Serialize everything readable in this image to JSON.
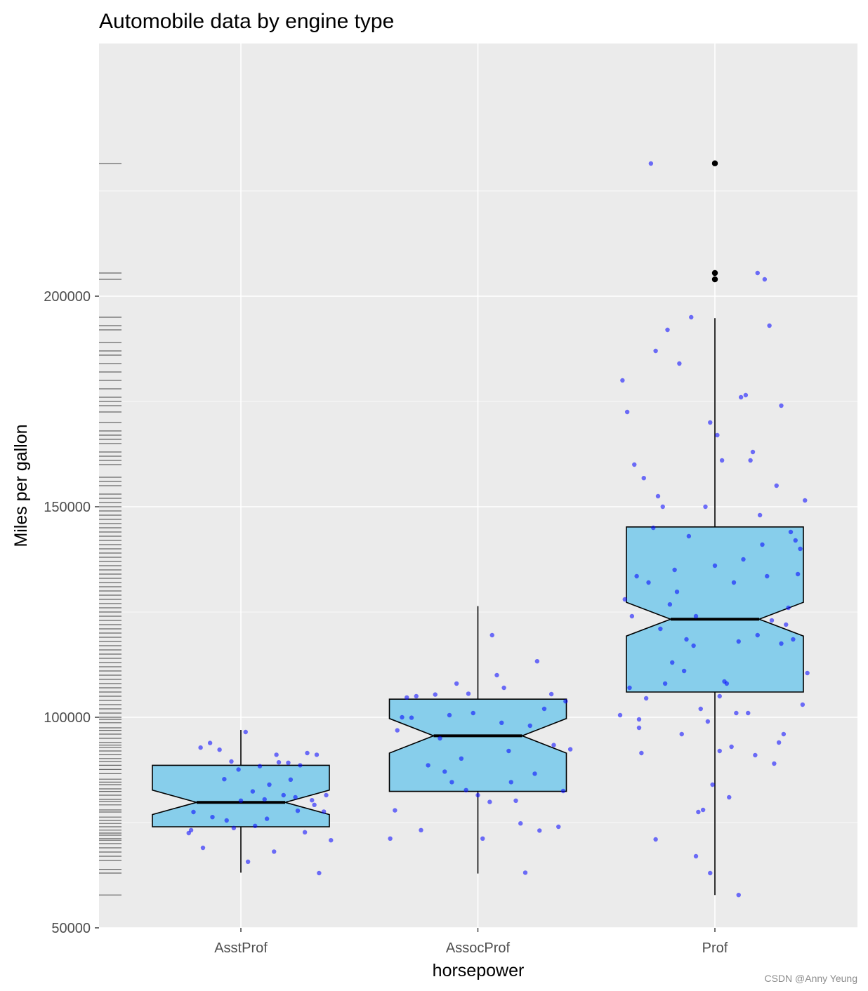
{
  "watermark": "CSDN @Anny Yeung",
  "colors": {
    "panel_bg": "#EBEBEB",
    "grid": "#FFFFFF",
    "box_fill": "#87CEEB",
    "box_outline": "#000000",
    "jitter_points": "#0000FF",
    "outliers": "#000000",
    "rug": "#666666"
  },
  "chart_data": {
    "type": "boxplot",
    "title": "Automobile data by engine type",
    "xlabel": "horsepower",
    "ylabel": "Miles per gallon",
    "categories": [
      "AsstProf",
      "AssocProf",
      "Prof"
    ],
    "ylim": [
      50000,
      250000
    ],
    "yticks": [
      50000,
      100000,
      150000,
      200000
    ],
    "ytick_labels": [
      "50000",
      "100000",
      "150000",
      "200000"
    ],
    "notched": true,
    "grid": true,
    "legend": "none",
    "boxes": [
      {
        "category": "AsstProf",
        "whisker_low": 63100,
        "q1": 74000,
        "median": 79800,
        "q3": 88600,
        "whisker_high": 97000,
        "notch_low": 76900,
        "notch_high": 82700,
        "outliers": []
      },
      {
        "category": "AssocProf",
        "whisker_low": 62900,
        "q1": 82400,
        "median": 95600,
        "q3": 104300,
        "whisker_high": 126400,
        "notch_low": 91500,
        "notch_high": 99700,
        "outliers": []
      },
      {
        "category": "Prof",
        "whisker_low": 57800,
        "q1": 106000,
        "median": 123300,
        "q3": 145200,
        "whisker_high": 194800,
        "notch_low": 119300,
        "notch_high": 127300,
        "outliers": [
          231545,
          205500,
          204000
        ]
      }
    ],
    "jitter_points": [
      {
        "category": "AsstProf",
        "x": [
          0.8,
          0.78,
          0.79,
          0.84,
          0.91,
          0.87,
          0.96,
          0.93,
          0.99,
          1.06,
          1.08,
          1.12,
          1.15,
          1.18,
          1.24,
          1.28,
          1.32,
          1.36,
          1.38,
          1.33,
          1.27,
          1.21,
          1.16,
          1.1,
          1.03,
          0.97,
          1.0,
          1.05,
          1.14,
          1.2,
          1.25,
          1.31,
          1.35,
          0.94,
          0.88,
          1.02,
          0.83,
          1.23,
          1.3,
          1.11
        ],
        "y": [
          77500,
          72500,
          73200,
          69000,
          92300,
          93900,
          89500,
          85300,
          87600,
          74200,
          88400,
          84000,
          91100,
          81500,
          77800,
          91500,
          91100,
          81500,
          70800,
          63000,
          72700,
          85200,
          89300,
          80500,
          65700,
          73700,
          80200,
          82400,
          68100,
          89200,
          88600,
          79200,
          77600,
          75500,
          76300,
          96500,
          92800,
          81000,
          80300,
          75900
        ]
      },
      {
        "category": "AssocProf",
        "x": [
          1.63,
          1.65,
          1.68,
          1.7,
          1.74,
          1.76,
          1.79,
          1.82,
          1.86,
          1.89,
          1.91,
          1.93,
          1.96,
          1.98,
          2.02,
          2.05,
          2.08,
          2.11,
          2.13,
          2.16,
          2.2,
          2.22,
          2.25,
          2.28,
          2.31,
          2.34,
          2.37,
          2.39,
          1.66,
          1.72,
          1.84,
          1.95,
          2.0,
          2.06,
          2.14,
          2.18,
          2.26,
          2.32,
          2.36,
          1.88,
          2.1,
          2.24
        ],
        "y": [
          71200,
          77900,
          100000,
          104700,
          105000,
          73200,
          88600,
          105400,
          87100,
          84600,
          108000,
          90200,
          105600,
          101000,
          71200,
          79900,
          110000,
          107000,
          92000,
          80200,
          63100,
          98000,
          113300,
          102000,
          105500,
          74000,
          103800,
          92400,
          96900,
          99900,
          95000,
          82700,
          81500,
          119500,
          84600,
          74800,
          73100,
          93400,
          82500,
          100500,
          98700,
          86600
        ]
      },
      {
        "category": "Prof",
        "x": [
          2.61,
          2.63,
          2.66,
          2.68,
          2.7,
          2.73,
          2.75,
          2.78,
          2.8,
          2.83,
          2.85,
          2.88,
          2.9,
          2.93,
          2.95,
          2.98,
          3.01,
          3.03,
          3.06,
          3.08,
          3.11,
          3.13,
          3.16,
          3.18,
          3.21,
          3.23,
          3.26,
          3.28,
          3.31,
          3.33,
          3.36,
          3.38,
          2.62,
          2.65,
          2.69,
          2.72,
          2.76,
          2.79,
          2.82,
          2.86,
          2.89,
          2.92,
          2.96,
          2.99,
          3.02,
          3.05,
          3.09,
          3.12,
          3.15,
          3.19,
          3.22,
          3.25,
          3.29,
          3.32,
          3.35,
          3.37,
          2.64,
          2.67,
          2.71,
          2.74,
          2.77,
          2.81,
          2.84,
          2.87,
          2.91,
          2.94,
          2.97,
          3.0,
          3.04,
          3.07,
          3.1,
          3.14,
          3.17,
          3.2,
          3.24,
          3.27,
          3.3,
          3.34,
          3.39,
          2.6,
          2.98,
          3.02,
          3.28,
          3.18,
          2.75,
          2.92,
          2.68,
          3.1
        ],
        "y": [
          180000,
          172500,
          160000,
          97500,
          156800,
          231500,
          187000,
          150000,
          192000,
          135000,
          184000,
          118500,
          195000,
          77500,
          78000,
          170000,
          167000,
          161000,
          81000,
          132000,
          176000,
          176500,
          163000,
          205500,
          204000,
          193000,
          155000,
          174000,
          126000,
          118500,
          140000,
          151500,
          128000,
          124000,
          91500,
          132000,
          152500,
          108000,
          113000,
          96000,
          143000,
          124000,
          150000,
          84000,
          105000,
          108000,
          101000,
          137500,
          161000,
          148000,
          133500,
          89000,
          96000,
          144000,
          134000,
          103000,
          107000,
          133500,
          104500,
          145000,
          121000,
          126800,
          129800,
          111000,
          117000,
          102000,
          99000,
          136000,
          108500,
          93000,
          118000,
          101000,
          91000,
          141000,
          123000,
          94000,
          122000,
          142000,
          110500,
          100500,
          63000,
          92000,
          117500,
          119500,
          71000,
          67000,
          99500,
          57800
        ]
      }
    ],
    "rug_y": [
      57800,
      63000,
      63900,
      66000,
      67000,
      68000,
      69000,
      70000,
      70800,
      71200,
      72000,
      72500,
      73200,
      74000,
      74800,
      75500,
      76300,
      77500,
      78000,
      79200,
      80000,
      80500,
      81500,
      82400,
      83000,
      84000,
      84600,
      85300,
      86600,
      87600,
      88600,
      89500,
      90200,
      91100,
      92000,
      92800,
      93400,
      94000,
      95000,
      96000,
      96900,
      97500,
      98700,
      99500,
      100000,
      101000,
      102000,
      103000,
      104000,
      105000,
      106000,
      107000,
      108000,
      109000,
      110000,
      111000,
      112000,
      113000,
      114000,
      115000,
      116000,
      117000,
      118000,
      119000,
      120000,
      121000,
      122000,
      123000,
      124000,
      125000,
      126000,
      127000,
      128000,
      129000,
      130000,
      131000,
      132000,
      133000,
      134000,
      135000,
      136000,
      137000,
      138000,
      139000,
      140000,
      141000,
      142000,
      143000,
      144000,
      145000,
      146000,
      147000,
      148000,
      149000,
      150000,
      151000,
      152000,
      153000,
      155000,
      156000,
      157000,
      160000,
      161000,
      162000,
      163000,
      165000,
      166000,
      167000,
      168000,
      170000,
      172500,
      174000,
      175000,
      176000,
      178000,
      180000,
      182000,
      184000,
      186000,
      187000,
      189000,
      192000,
      193000,
      195000,
      204000,
      205500,
      231500
    ]
  }
}
